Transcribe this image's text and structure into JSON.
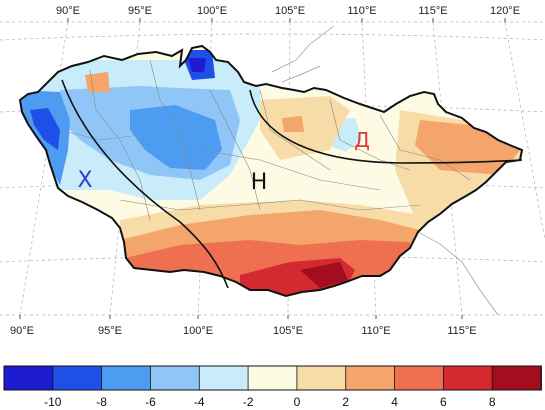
{
  "map": {
    "top_lon_labels": [
      "90°E",
      "95°E",
      "100°E",
      "105°E",
      "110°E",
      "115°E",
      "120°E"
    ],
    "bottom_lon_labels": [
      "90°E",
      "95°E",
      "100°E",
      "105°E",
      "110°E",
      "115°E"
    ],
    "zone_labels": [
      {
        "text": "Х",
        "color": "#3a3acb"
      },
      {
        "text": "Н",
        "color": "#111111"
      },
      {
        "text": "Д",
        "color": "#d93a3a"
      }
    ]
  },
  "colorbar": {
    "tick_labels": [
      "-10",
      "-8",
      "-6",
      "-4",
      "-2",
      "0",
      "2",
      "4",
      "6",
      "8"
    ],
    "colors": [
      "#1f1bd0",
      "#1e4fe6",
      "#4e9bf2",
      "#8fc6f7",
      "#c9ecfb",
      "#fdfbe3",
      "#f7dca7",
      "#f4a56c",
      "#ef7050",
      "#d42a2f",
      "#a20d20"
    ]
  }
}
